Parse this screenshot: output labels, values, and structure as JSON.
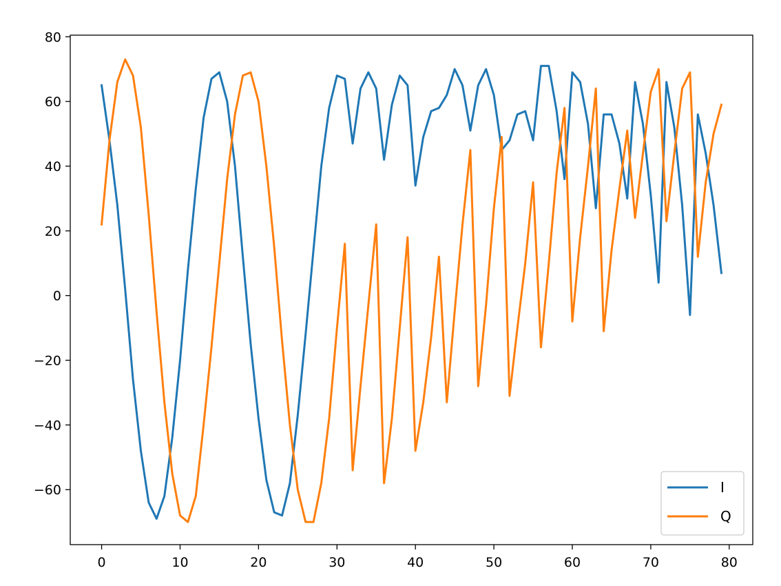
{
  "chart_data": {
    "type": "line",
    "title": "",
    "xlabel": "",
    "ylabel": "",
    "xlim": [
      -4,
      83
    ],
    "ylim": [
      -77,
      80.5
    ],
    "xticks": [
      0,
      10,
      20,
      30,
      40,
      50,
      60,
      70,
      80
    ],
    "yticks": [
      80,
      60,
      40,
      20,
      0,
      -20,
      -40,
      -60
    ],
    "tick_labels": {
      "x": [
        "0",
        "10",
        "20",
        "30",
        "40",
        "50",
        "60",
        "70",
        "80"
      ],
      "y": [
        "80",
        "60",
        "40",
        "20",
        "0",
        "−20",
        "−40",
        "−60"
      ]
    },
    "grid": false,
    "legend_position": "lower-right",
    "x": [
      0,
      1,
      2,
      3,
      4,
      5,
      6,
      7,
      8,
      9,
      10,
      11,
      12,
      13,
      14,
      15,
      16,
      17,
      18,
      19,
      20,
      21,
      22,
      23,
      24,
      25,
      26,
      27,
      28,
      29,
      30,
      31,
      32,
      33,
      34,
      35,
      36,
      37,
      38,
      39,
      40,
      41,
      42,
      43,
      44,
      45,
      46,
      47,
      48,
      49,
      50,
      51,
      52,
      53,
      54,
      55,
      56,
      57,
      58,
      59,
      60,
      61,
      62,
      63,
      64,
      65,
      66,
      67,
      68,
      69,
      70,
      71,
      72,
      73,
      74,
      75,
      76,
      77,
      78,
      79
    ],
    "series": [
      {
        "name": "I",
        "color": "#1f77b4",
        "values": [
          65,
          48,
          28,
          2,
          -26,
          -48,
          -64,
          -69,
          -62,
          -44,
          -20,
          8,
          33,
          55,
          67,
          69,
          60,
          40,
          12,
          -15,
          -38,
          -57,
          -67,
          -68,
          -58,
          -37,
          -12,
          14,
          40,
          58,
          68,
          67,
          47,
          64,
          69,
          64,
          42,
          59,
          68,
          65,
          34,
          49,
          57,
          58,
          62,
          70,
          65,
          51,
          65,
          70,
          62,
          45,
          48,
          56,
          57,
          48,
          71,
          71,
          57,
          36,
          69,
          66,
          53,
          27,
          56,
          56,
          47,
          30,
          66,
          53,
          31,
          4,
          66,
          52,
          28,
          -6,
          56,
          44,
          28,
          7
        ]
      },
      {
        "name": "Q",
        "color": "#ff7f0e",
        "values": [
          22,
          48,
          66,
          73,
          68,
          52,
          25,
          -5,
          -33,
          -55,
          -68,
          -70,
          -62,
          -40,
          -16,
          10,
          36,
          56,
          68,
          69,
          60,
          40,
          15,
          -14,
          -40,
          -60,
          -70,
          -70,
          -58,
          -38,
          -10,
          16,
          -54,
          -28,
          -3,
          22,
          -58,
          -38,
          -10,
          18,
          -48,
          -33,
          -13,
          12,
          -33,
          -5,
          22,
          45,
          -28,
          -3,
          27,
          49,
          -31,
          -10,
          10,
          35,
          -16,
          10,
          38,
          58,
          -8,
          18,
          40,
          64,
          -11,
          14,
          33,
          51,
          24,
          44,
          63,
          70,
          23,
          44,
          64,
          69,
          12,
          35,
          50,
          59
        ]
      }
    ]
  }
}
